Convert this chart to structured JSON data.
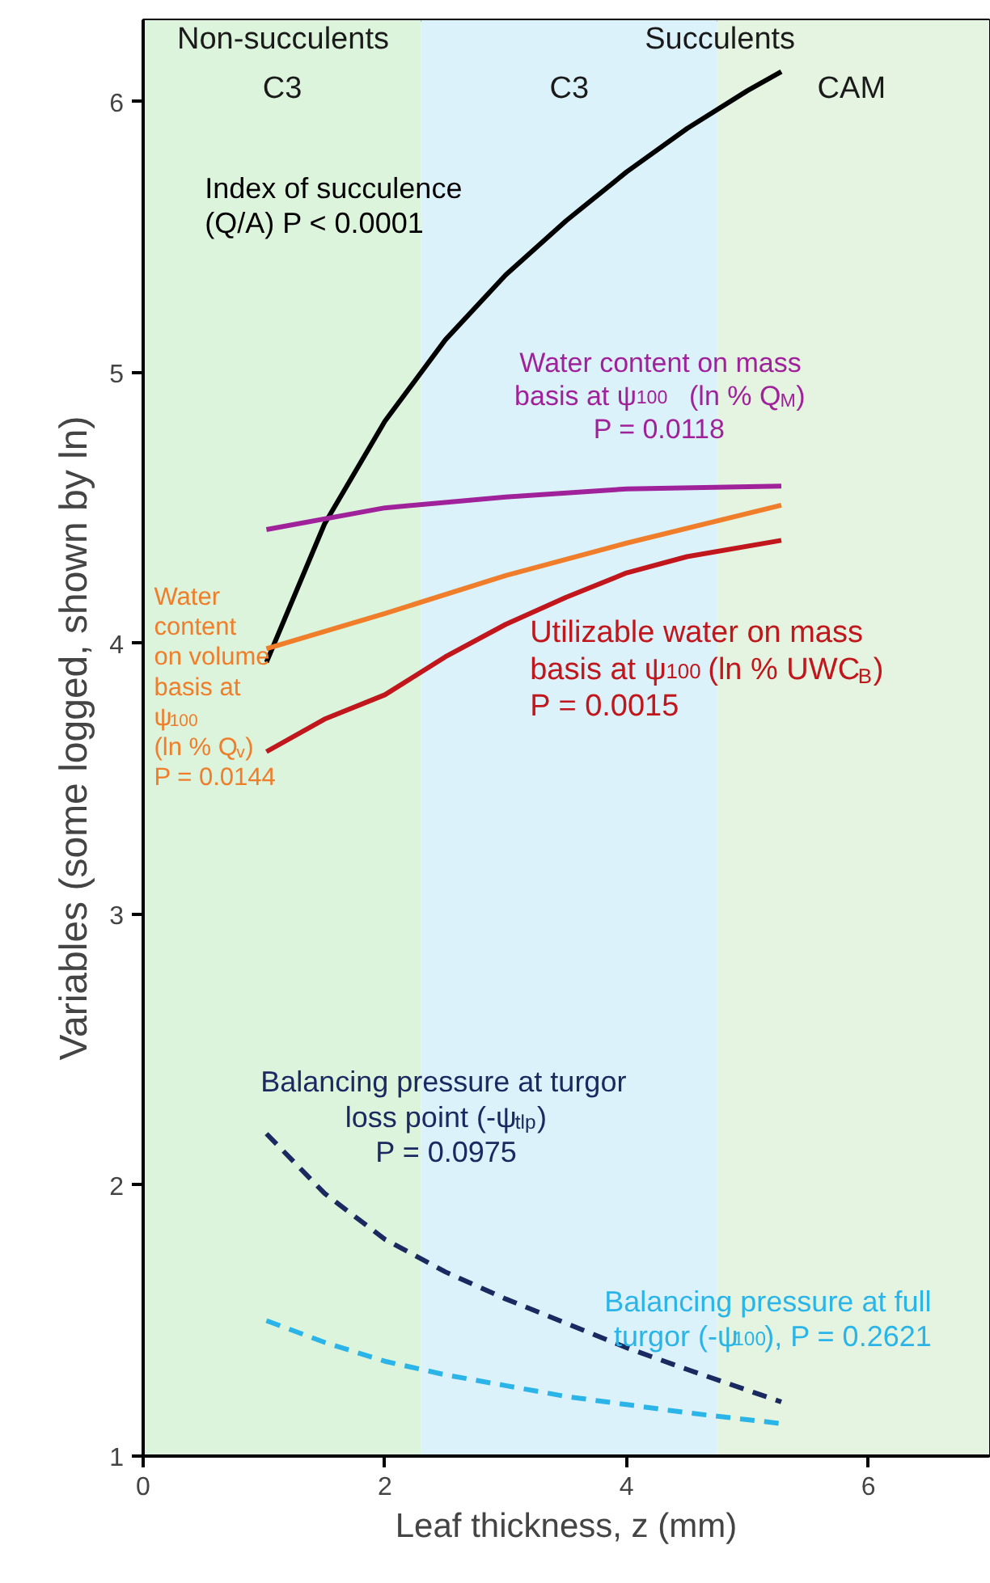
{
  "chart_data": {
    "type": "line",
    "xlabel": "Leaf thickness, z (mm)",
    "ylabel": "Variables (some logged, shown by ln)",
    "xlim": [
      0,
      7
    ],
    "ylim": [
      1,
      6.3
    ],
    "xticks": [
      0,
      2,
      4,
      6
    ],
    "yticks": [
      1,
      2,
      3,
      4,
      5,
      6
    ],
    "marker": "none",
    "bands": [
      {
        "axis": "x",
        "from": 0,
        "to": 2.3,
        "label": "C3",
        "color": "#dcf3dc"
      },
      {
        "axis": "x",
        "from": 2.3,
        "to": 4.75,
        "label": "C3",
        "color": "#dcf2fa"
      },
      {
        "axis": "x",
        "from": 4.75,
        "to": 7,
        "label": "CAM",
        "color": "#e4f4e0"
      }
    ],
    "annotations": [
      "Non-succulents",
      "Succulents"
    ],
    "series": [
      {
        "name": "Index of succulence\n(Q/A) P < 0.0001",
        "color": "#000000",
        "line_style": "solid",
        "x": [
          1.02,
          1.5,
          2,
          2.5,
          3,
          3.5,
          4,
          4.5,
          5,
          5.28
        ],
        "values": [
          3.93,
          4.44,
          4.82,
          5.12,
          5.36,
          5.56,
          5.74,
          5.9,
          6.04,
          6.11
        ]
      },
      {
        "name": "Water content on mass\nbasis at ψ$_{100}$   (ln % Q$_{M}$)\nP = 0.0118",
        "color": "#a0229b",
        "line_style": "solid",
        "x": [
          1.02,
          2,
          3,
          4,
          5.28
        ],
        "values": [
          4.42,
          4.5,
          4.54,
          4.57,
          4.58
        ]
      },
      {
        "name": "Water\ncontent\non volume\nbasis at\nψ$_{100}$\n(ln % Q$_{v}$)\nP = 0.0144",
        "color": "#ef7d2a",
        "line_style": "solid",
        "x": [
          1.02,
          2,
          3,
          4,
          5.28
        ],
        "values": [
          3.98,
          4.11,
          4.25,
          4.37,
          4.51
        ]
      },
      {
        "name": "Utilizable water on mass\nbasis at ψ$_{100}$ (ln % UWC$_{B}$)\nP = 0.0015",
        "color": "#c0161c",
        "line_style": "solid",
        "x": [
          1.02,
          1.5,
          2,
          2.5,
          3,
          3.5,
          4,
          4.5,
          5.28
        ],
        "values": [
          3.6,
          3.72,
          3.81,
          3.95,
          4.07,
          4.17,
          4.26,
          4.32,
          4.38
        ]
      },
      {
        "name": "Balancing pressure at turgor\nloss point (-ψ$_{tlp}$)\nP = 0.0975",
        "color": "#1a2a60",
        "line_style": "dashed",
        "x": [
          1.02,
          1.5,
          2,
          2.5,
          3,
          3.5,
          4,
          4.5,
          5.28
        ],
        "values": [
          2.19,
          1.97,
          1.8,
          1.68,
          1.58,
          1.49,
          1.4,
          1.32,
          1.2
        ]
      },
      {
        "name": "Balancing pressure at full\nturgor (-ψ$_{100}$), P = 0.2621",
        "color": "#2bb4e8",
        "line_style": "dashed",
        "x": [
          1.02,
          1.5,
          2,
          2.5,
          3,
          3.5,
          4,
          4.5,
          5.28
        ],
        "values": [
          1.5,
          1.42,
          1.35,
          1.3,
          1.26,
          1.22,
          1.19,
          1.16,
          1.12
        ]
      }
    ]
  }
}
